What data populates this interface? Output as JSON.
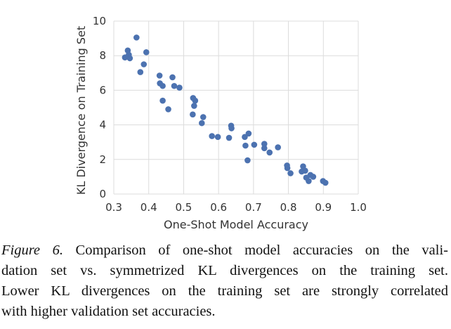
{
  "chart_data": {
    "type": "scatter",
    "title": "",
    "xlabel": "One-Shot Model Accuracy",
    "ylabel": "KL Divergence on Training Set",
    "xlim": [
      0.3,
      1.0
    ],
    "ylim": [
      0,
      10
    ],
    "xticks": [
      "0.3",
      "0.4",
      "0.5",
      "0.6",
      "0.7",
      "0.8",
      "0.9",
      "1.0"
    ],
    "yticks": [
      "0",
      "2",
      "4",
      "6",
      "8",
      "10"
    ],
    "grid": true,
    "marker_color": "#4c72b0",
    "points": [
      {
        "x": 0.365,
        "y": 9.05
      },
      {
        "x": 0.34,
        "y": 8.3
      },
      {
        "x": 0.393,
        "y": 8.2
      },
      {
        "x": 0.343,
        "y": 8.05
      },
      {
        "x": 0.332,
        "y": 7.9
      },
      {
        "x": 0.346,
        "y": 7.85
      },
      {
        "x": 0.386,
        "y": 7.5
      },
      {
        "x": 0.376,
        "y": 7.05
      },
      {
        "x": 0.431,
        "y": 6.85
      },
      {
        "x": 0.468,
        "y": 6.75
      },
      {
        "x": 0.432,
        "y": 6.4
      },
      {
        "x": 0.44,
        "y": 6.25
      },
      {
        "x": 0.473,
        "y": 6.25
      },
      {
        "x": 0.488,
        "y": 6.15
      },
      {
        "x": 0.527,
        "y": 5.55
      },
      {
        "x": 0.44,
        "y": 5.4
      },
      {
        "x": 0.533,
        "y": 5.4
      },
      {
        "x": 0.53,
        "y": 5.1
      },
      {
        "x": 0.456,
        "y": 4.9
      },
      {
        "x": 0.526,
        "y": 4.6
      },
      {
        "x": 0.556,
        "y": 4.45
      },
      {
        "x": 0.552,
        "y": 4.1
      },
      {
        "x": 0.636,
        "y": 3.95
      },
      {
        "x": 0.637,
        "y": 3.8
      },
      {
        "x": 0.686,
        "y": 3.5
      },
      {
        "x": 0.581,
        "y": 3.35
      },
      {
        "x": 0.598,
        "y": 3.3
      },
      {
        "x": 0.675,
        "y": 3.3
      },
      {
        "x": 0.63,
        "y": 3.25
      },
      {
        "x": 0.731,
        "y": 2.9
      },
      {
        "x": 0.702,
        "y": 2.85
      },
      {
        "x": 0.677,
        "y": 2.8
      },
      {
        "x": 0.77,
        "y": 2.7
      },
      {
        "x": 0.731,
        "y": 2.65
      },
      {
        "x": 0.746,
        "y": 2.4
      },
      {
        "x": 0.683,
        "y": 1.95
      },
      {
        "x": 0.796,
        "y": 1.65
      },
      {
        "x": 0.842,
        "y": 1.6
      },
      {
        "x": 0.797,
        "y": 1.5
      },
      {
        "x": 0.838,
        "y": 1.3
      },
      {
        "x": 0.848,
        "y": 1.35
      },
      {
        "x": 0.806,
        "y": 1.2
      },
      {
        "x": 0.863,
        "y": 1.1
      },
      {
        "x": 0.871,
        "y": 1.0
      },
      {
        "x": 0.851,
        "y": 0.95
      },
      {
        "x": 0.858,
        "y": 0.75
      },
      {
        "x": 0.899,
        "y": 0.75
      },
      {
        "x": 0.906,
        "y": 0.65
      }
    ]
  },
  "caption": {
    "label": "Figure 6.",
    "text_lines": [
      "Comparison of one-shot model accuracies on the vali-",
      "dation set vs.  symmetrized KL divergences on the training set.",
      "Lower KL divergences on the training set are strongly correlated",
      "with higher validation set accuracies."
    ]
  }
}
